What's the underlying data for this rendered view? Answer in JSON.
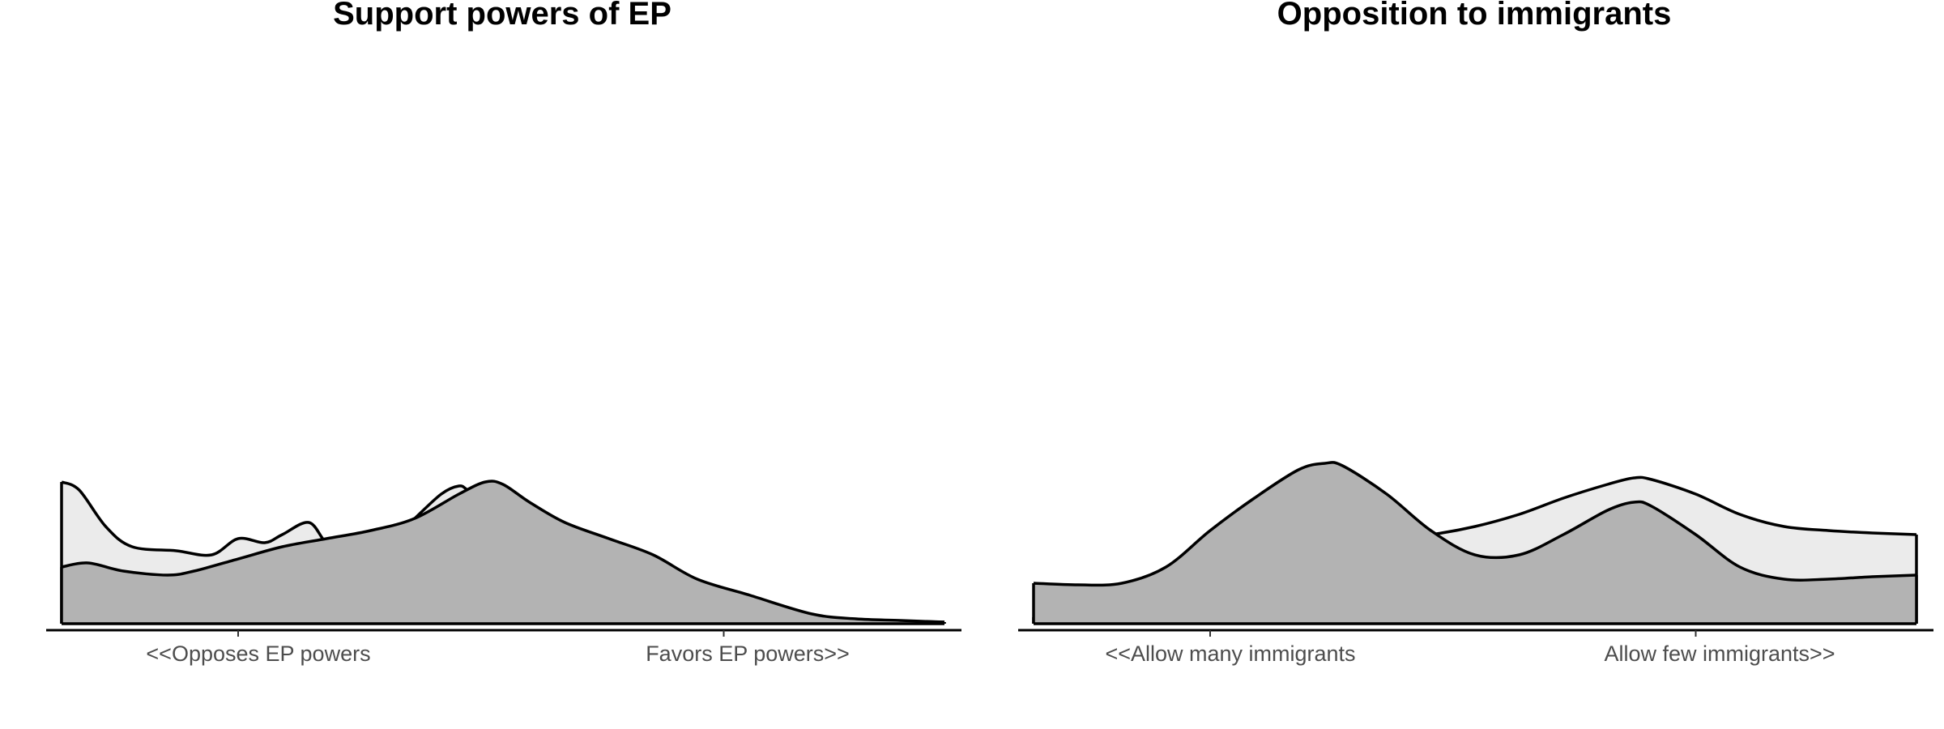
{
  "chart_data": [
    {
      "type": "area",
      "title": "Support powers of EP",
      "xlabel": "",
      "ylabel": "",
      "tick_labels": [
        "<<Opposes EP powers",
        "Favors EP powers>>"
      ],
      "ticks_x": [
        0.2,
        0.75
      ],
      "xlim": [
        0,
        1
      ],
      "ylim": [
        0,
        4.6
      ],
      "grid": false,
      "legend": "none",
      "series": [
        {
          "fill": "#ebebeb",
          "x": [
            0.0,
            0.02,
            0.05,
            0.08,
            0.13,
            0.17,
            0.2,
            0.23,
            0.25,
            0.28,
            0.3,
            0.32,
            0.34,
            0.36,
            0.38,
            0.4,
            0.43,
            0.45,
            0.46,
            0.48,
            0.5,
            0.52,
            0.54,
            0.56,
            0.58,
            0.6,
            0.63,
            0.66,
            0.7,
            0.73,
            0.75,
            0.78,
            0.82,
            0.85,
            0.88,
            0.92,
            0.96,
            1.0
          ],
          "values": [
            1.75,
            1.65,
            1.2,
            0.95,
            0.9,
            0.85,
            1.05,
            1.0,
            1.1,
            1.25,
            1.0,
            0.95,
            1.0,
            1.05,
            1.1,
            1.3,
            1.6,
            1.7,
            1.65,
            1.5,
            1.25,
            0.95,
            0.8,
            0.65,
            0.55,
            0.55,
            0.5,
            0.45,
            0.35,
            0.27,
            0.22,
            0.18,
            0.12,
            0.07,
            0.05,
            0.04,
            0.03,
            0.02
          ]
        },
        {
          "fill": "#b3b3b3",
          "x": [
            0.0,
            0.03,
            0.07,
            0.12,
            0.15,
            0.2,
            0.25,
            0.3,
            0.35,
            0.4,
            0.45,
            0.48,
            0.5,
            0.53,
            0.57,
            0.62,
            0.67,
            0.72,
            0.78,
            0.85,
            0.9,
            0.95,
            1.0
          ],
          "values": [
            0.7,
            0.75,
            0.65,
            0.6,
            0.65,
            0.8,
            0.95,
            1.05,
            1.15,
            1.3,
            1.6,
            1.75,
            1.72,
            1.5,
            1.25,
            1.05,
            0.85,
            0.55,
            0.35,
            0.12,
            0.06,
            0.04,
            0.02
          ]
        }
      ]
    },
    {
      "type": "area",
      "title": "Opposition to immigrants",
      "xlabel": "",
      "ylabel": "",
      "tick_labels": [
        "<<Allow many immigrants",
        "Allow few immigrants>>"
      ],
      "ticks_x": [
        0.2,
        0.75
      ],
      "xlim": [
        0,
        1
      ],
      "ylim": [
        0,
        4.6
      ],
      "grid": false,
      "legend": "none",
      "series": [
        {
          "fill": "#ebebeb",
          "x": [
            0.0,
            0.05,
            0.1,
            0.15,
            0.2,
            0.25,
            0.3,
            0.35,
            0.4,
            0.45,
            0.5,
            0.55,
            0.6,
            0.65,
            0.68,
            0.7,
            0.75,
            0.8,
            0.85,
            0.9,
            0.95,
            1.0
          ],
          "values": [
            0.08,
            0.15,
            0.25,
            0.4,
            0.6,
            0.8,
            0.95,
            1.0,
            1.05,
            1.1,
            1.2,
            1.35,
            1.55,
            1.72,
            1.8,
            1.78,
            1.6,
            1.35,
            1.2,
            1.15,
            1.12,
            1.1
          ]
        },
        {
          "fill": "#b3b3b3",
          "x": [
            0.0,
            0.05,
            0.1,
            0.15,
            0.2,
            0.25,
            0.3,
            0.33,
            0.35,
            0.4,
            0.45,
            0.5,
            0.55,
            0.6,
            0.65,
            0.68,
            0.7,
            0.75,
            0.8,
            0.85,
            0.9,
            0.95,
            1.0
          ],
          "values": [
            0.5,
            0.48,
            0.5,
            0.7,
            1.15,
            1.55,
            1.9,
            1.98,
            1.95,
            1.6,
            1.15,
            0.85,
            0.85,
            1.1,
            1.4,
            1.5,
            1.45,
            1.1,
            0.7,
            0.55,
            0.55,
            0.58,
            0.6
          ]
        }
      ]
    }
  ]
}
